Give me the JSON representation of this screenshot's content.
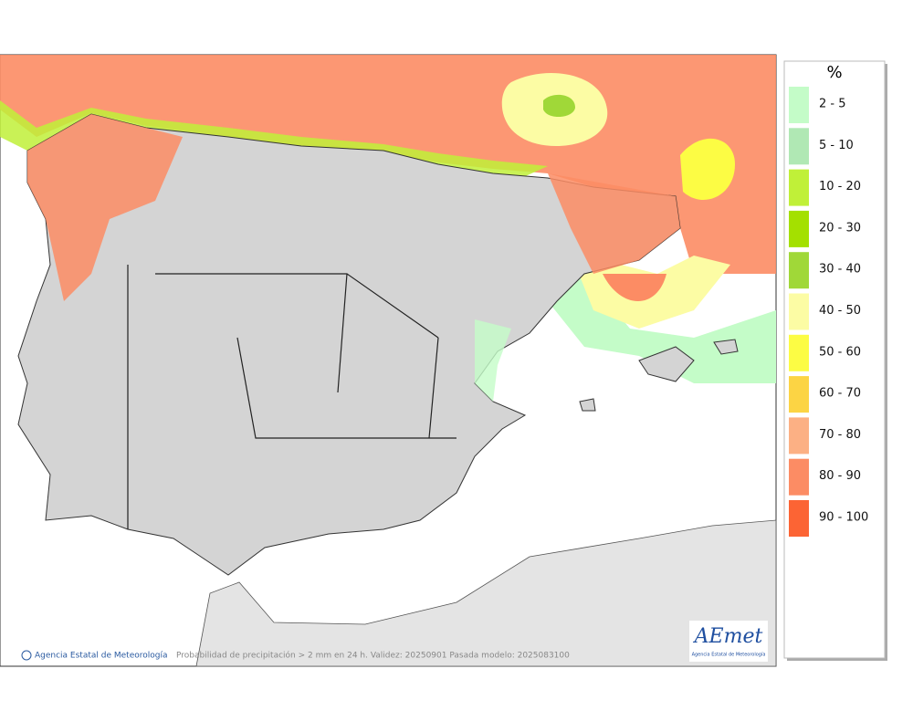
{
  "map": {
    "credit": "Agencia Estatal de Meteorología",
    "caption": "Probabilidad de precipitación > 2 mm en 24 h. Validez: 20250901 Pasada modelo: 2025083100",
    "logo": {
      "name": "AEmet",
      "subtitle": "Agencia Estatal de Meteorología"
    }
  },
  "legend": {
    "title": "%",
    "items": [
      {
        "label": "2 - 5",
        "color": "#c4fcc8"
      },
      {
        "label": "5 - 10",
        "color": "#b0e8b4"
      },
      {
        "label": "10 - 20",
        "color": "#c0f038"
      },
      {
        "label": "20 - 30",
        "color": "#a4e000"
      },
      {
        "label": "30 - 40",
        "color": "#a0d838"
      },
      {
        "label": "40 - 50",
        "color": "#fcfca4"
      },
      {
        "label": "50 - 60",
        "color": "#fcfc44"
      },
      {
        "label": "60 - 70",
        "color": "#fcd444"
      },
      {
        "label": "70 - 80",
        "color": "#fcb084"
      },
      {
        "label": "80 - 90",
        "color": "#fc8c64"
      },
      {
        "label": "90 - 100",
        "color": "#fc6434"
      }
    ]
  }
}
